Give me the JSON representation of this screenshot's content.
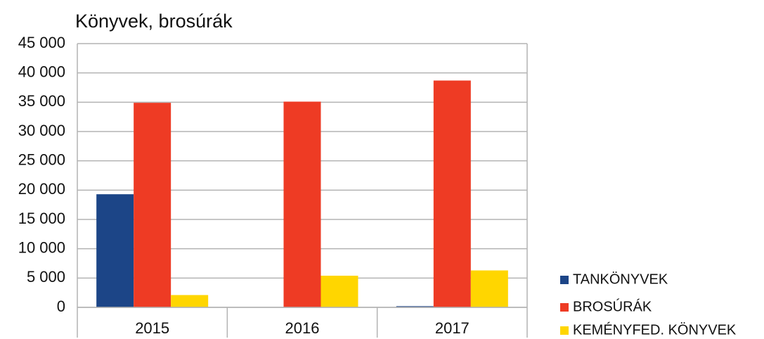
{
  "chart_data": {
    "type": "bar",
    "title": "Könyvek, brosúrák",
    "categories": [
      "2015",
      "2016",
      "2017"
    ],
    "series": [
      {
        "name": "TANKÖNYVEK",
        "color": "#1c4587",
        "values": [
          19300,
          0,
          200
        ]
      },
      {
        "name": "BROSÚRÁK",
        "color": "#ee3b24",
        "values": [
          34900,
          35100,
          38700
        ]
      },
      {
        "name": "KEMÉNYFED. KÖNYVEK",
        "color": "#ffd600",
        "values": [
          2100,
          5400,
          6300
        ]
      }
    ],
    "ylim": [
      0,
      45000
    ],
    "yticks": [
      0,
      {
        "value": 5000,
        "label": "5 000"
      },
      {
        "value": 10000,
        "label": "10 000"
      },
      {
        "value": 15000,
        "label": "15 000"
      },
      {
        "value": 20000,
        "label": "20 000"
      },
      {
        "value": 25000,
        "label": "25 000"
      },
      {
        "value": 30000,
        "label": "30 000"
      },
      {
        "value": 35000,
        "label": "35 000"
      },
      {
        "value": 40000,
        "label": "40 000"
      },
      {
        "value": 45000,
        "label": "45 000"
      }
    ],
    "grid": true,
    "legend": "right"
  }
}
